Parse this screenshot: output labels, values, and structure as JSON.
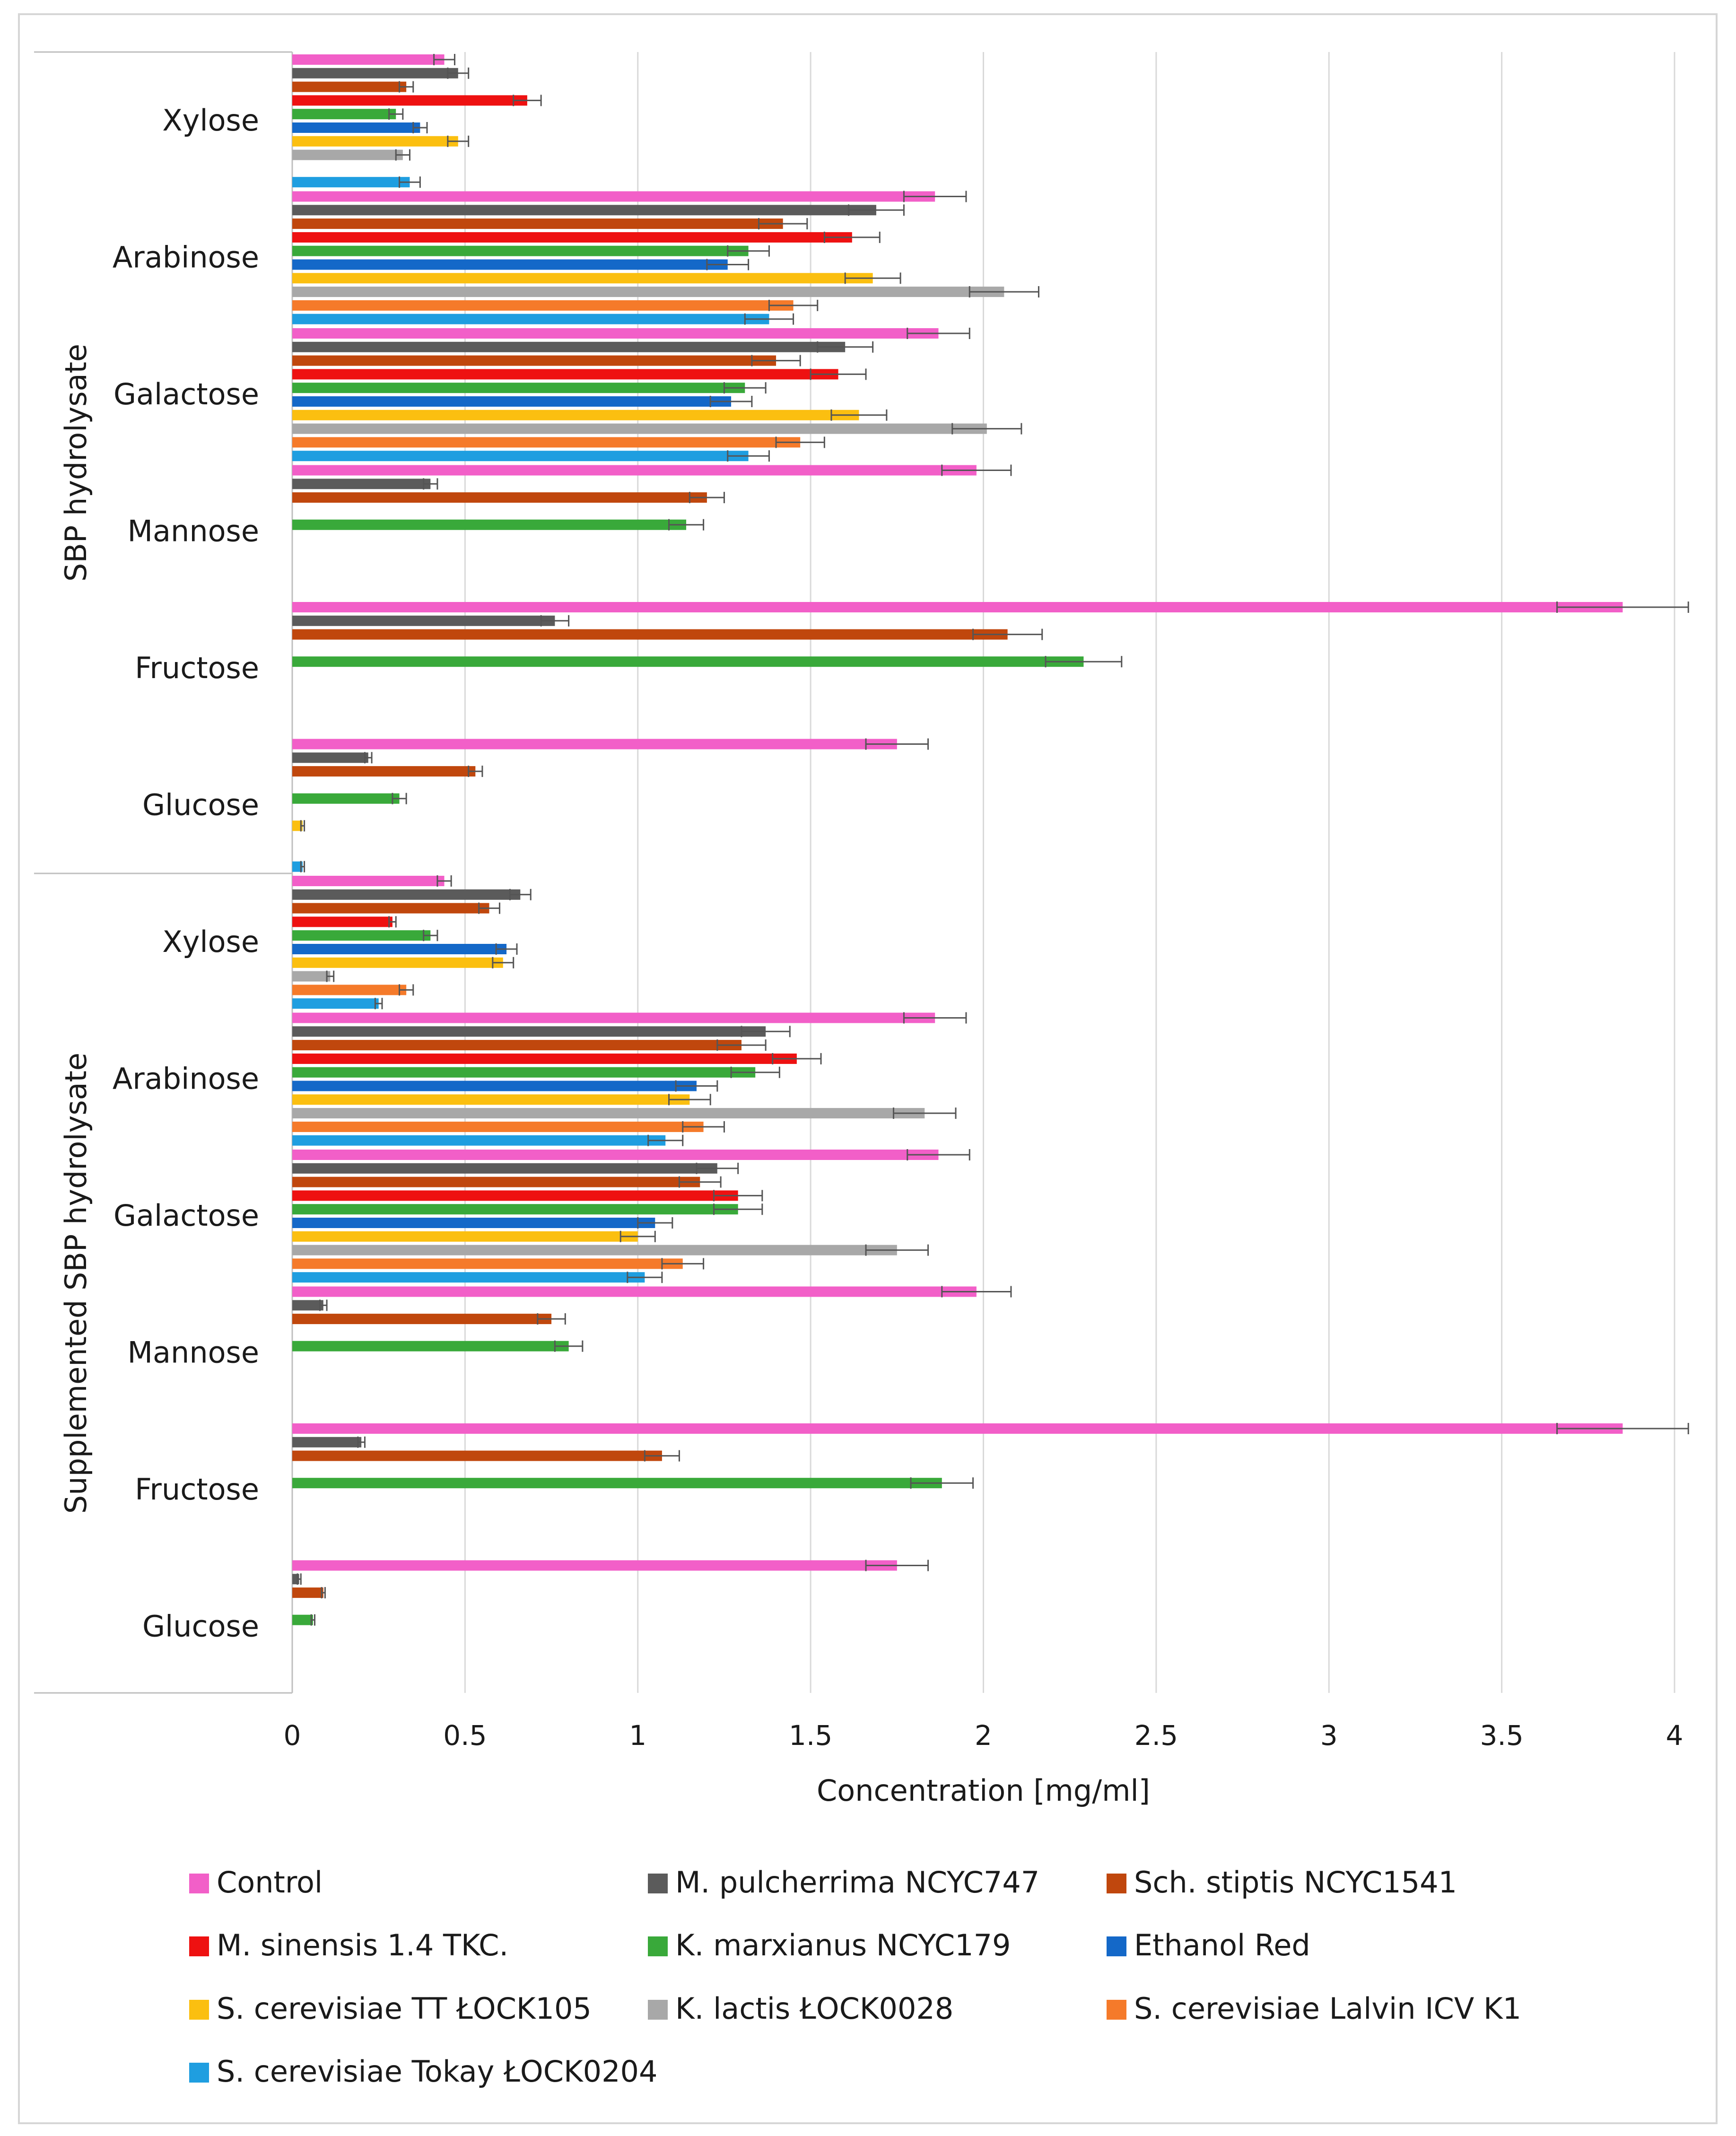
{
  "chart_data": {
    "type": "bar",
    "orientation": "horizontal",
    "xlabel": "Concentration [mg/ml]",
    "xlim": [
      0,
      4
    ],
    "xticks": [
      0,
      0.5,
      1,
      1.5,
      2,
      2.5,
      3,
      3.5,
      4
    ],
    "xtick_labels": [
      "0",
      "0.5",
      "1",
      "1.5",
      "2",
      "2.5",
      "3",
      "3.5",
      "4"
    ],
    "grid": "vertical",
    "legend_position": "bottom",
    "series": [
      {
        "name": "Control",
        "color": "#f25fc8"
      },
      {
        "name": "M. pulcherrima NCYC747",
        "color": "#5b5b5b"
      },
      {
        "name": "Sch. stiptis NCYC1541",
        "color": "#c0470d"
      },
      {
        "name": "M. sinensis 1.4 TKC.",
        "color": "#ee1111"
      },
      {
        "name": "K. marxianus NCYC179",
        "color": "#39a93a"
      },
      {
        "name": "Ethanol Red",
        "color": "#1468c8"
      },
      {
        "name": "S. cerevisiae TT ŁOCK105",
        "color": "#fbbf10"
      },
      {
        "name": "K. lactis ŁOCK0028",
        "color": "#a8a8a8"
      },
      {
        "name": "S. cerevisiae Lalvin ICV K1",
        "color": "#f57a2a"
      },
      {
        "name": "S. cerevisiae Tokay ŁOCK0204",
        "color": "#1f9ee0"
      }
    ],
    "groups": [
      {
        "name": "SBP hydrolysate",
        "categories": [
          {
            "name": "Xylose",
            "values": [
              0.44,
              0.48,
              0.33,
              0.68,
              0.3,
              0.37,
              0.48,
              0.32,
              null,
              0.34
            ],
            "errors": [
              0.03,
              0.03,
              0.02,
              0.04,
              0.02,
              0.02,
              0.03,
              0.02,
              null,
              0.03
            ]
          },
          {
            "name": "Arabinose",
            "values": [
              1.86,
              1.69,
              1.42,
              1.62,
              1.32,
              1.26,
              1.68,
              2.06,
              1.45,
              1.38
            ],
            "errors": [
              0.09,
              0.08,
              0.07,
              0.08,
              0.06,
              0.06,
              0.08,
              0.1,
              0.07,
              0.07
            ]
          },
          {
            "name": "Galactose",
            "values": [
              1.87,
              1.6,
              1.4,
              1.58,
              1.31,
              1.27,
              1.64,
              2.01,
              1.47,
              1.32
            ],
            "errors": [
              0.09,
              0.08,
              0.07,
              0.08,
              0.06,
              0.06,
              0.08,
              0.1,
              0.07,
              0.06
            ]
          },
          {
            "name": "Mannose",
            "values": [
              1.98,
              0.4,
              1.2,
              null,
              1.14,
              null,
              null,
              null,
              null,
              null
            ],
            "errors": [
              0.1,
              0.02,
              0.05,
              null,
              0.05,
              null,
              null,
              null,
              null,
              null
            ]
          },
          {
            "name": "Fructose",
            "values": [
              3.85,
              0.76,
              2.07,
              null,
              2.29,
              null,
              null,
              null,
              null,
              null
            ],
            "errors": [
              0.19,
              0.04,
              0.1,
              null,
              0.11,
              null,
              null,
              null,
              null,
              null
            ]
          },
          {
            "name": "Glucose",
            "values": [
              1.75,
              0.22,
              0.53,
              null,
              0.31,
              null,
              0.03,
              null,
              null,
              0.03
            ],
            "errors": [
              0.09,
              0.01,
              0.02,
              null,
              0.02,
              null,
              0.005,
              null,
              null,
              0.005
            ]
          }
        ]
      },
      {
        "name": "Supplemented SBP hydrolysate",
        "categories": [
          {
            "name": "Xylose",
            "values": [
              0.44,
              0.66,
              0.57,
              0.29,
              0.4,
              0.62,
              0.61,
              0.11,
              0.33,
              0.25
            ],
            "errors": [
              0.02,
              0.03,
              0.03,
              0.01,
              0.02,
              0.03,
              0.03,
              0.01,
              0.02,
              0.01
            ]
          },
          {
            "name": "Arabinose",
            "values": [
              1.86,
              1.37,
              1.3,
              1.46,
              1.34,
              1.17,
              1.15,
              1.83,
              1.19,
              1.08
            ],
            "errors": [
              0.09,
              0.07,
              0.07,
              0.07,
              0.07,
              0.06,
              0.06,
              0.09,
              0.06,
              0.05
            ]
          },
          {
            "name": "Galactose",
            "values": [
              1.87,
              1.23,
              1.18,
              1.29,
              1.29,
              1.05,
              1.0,
              1.75,
              1.13,
              1.02
            ],
            "errors": [
              0.09,
              0.06,
              0.06,
              0.07,
              0.07,
              0.05,
              0.05,
              0.09,
              0.06,
              0.05
            ]
          },
          {
            "name": "Mannose",
            "values": [
              1.98,
              0.09,
              0.75,
              null,
              0.8,
              null,
              null,
              null,
              null,
              null
            ],
            "errors": [
              0.1,
              0.01,
              0.04,
              null,
              0.04,
              null,
              null,
              null,
              null,
              null
            ]
          },
          {
            "name": "Fructose",
            "values": [
              3.85,
              0.2,
              1.07,
              null,
              1.88,
              null,
              null,
              null,
              null,
              null
            ],
            "errors": [
              0.19,
              0.01,
              0.05,
              null,
              0.09,
              null,
              null,
              null,
              null,
              null
            ]
          },
          {
            "name": "Glucose",
            "values": [
              1.75,
              0.02,
              0.09,
              null,
              0.06,
              null,
              null,
              null,
              null,
              null
            ],
            "errors": [
              0.09,
              0.005,
              0.005,
              null,
              0.005,
              null,
              null,
              null,
              null,
              null
            ]
          }
        ]
      }
    ]
  }
}
